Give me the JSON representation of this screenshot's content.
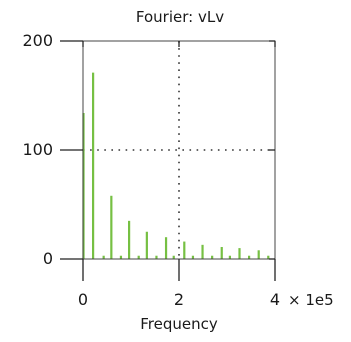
{
  "chart_data": {
    "type": "bar",
    "title": "Fourier: vLv",
    "xlabel": "Frequency",
    "ylabel": "",
    "x_multiplier_label": "× 1e5",
    "xlim": [
      0,
      4
    ],
    "ylim": [
      0,
      200
    ],
    "x_ticks": [
      0,
      2,
      4
    ],
    "y_ticks": [
      0,
      100,
      200
    ],
    "x_tick_labels": [
      "0",
      "2",
      "4"
    ],
    "y_tick_labels": [
      "0",
      "100",
      "200"
    ],
    "grid": true,
    "grid_style": "dotted",
    "bar_color": "#76c043",
    "series": [
      {
        "x": [
          0.0,
          0.2,
          0.42,
          0.58,
          0.78,
          0.95,
          1.15,
          1.32,
          1.52,
          1.72,
          1.88,
          2.1,
          2.28,
          2.48,
          2.68,
          2.88,
          3.05,
          3.25,
          3.45,
          3.65,
          3.85
        ],
        "values": [
          134,
          171,
          3,
          58,
          3,
          35,
          3,
          25,
          3,
          20,
          3,
          16,
          3,
          13,
          3,
          11,
          3,
          10,
          3,
          8,
          3
        ]
      }
    ]
  }
}
